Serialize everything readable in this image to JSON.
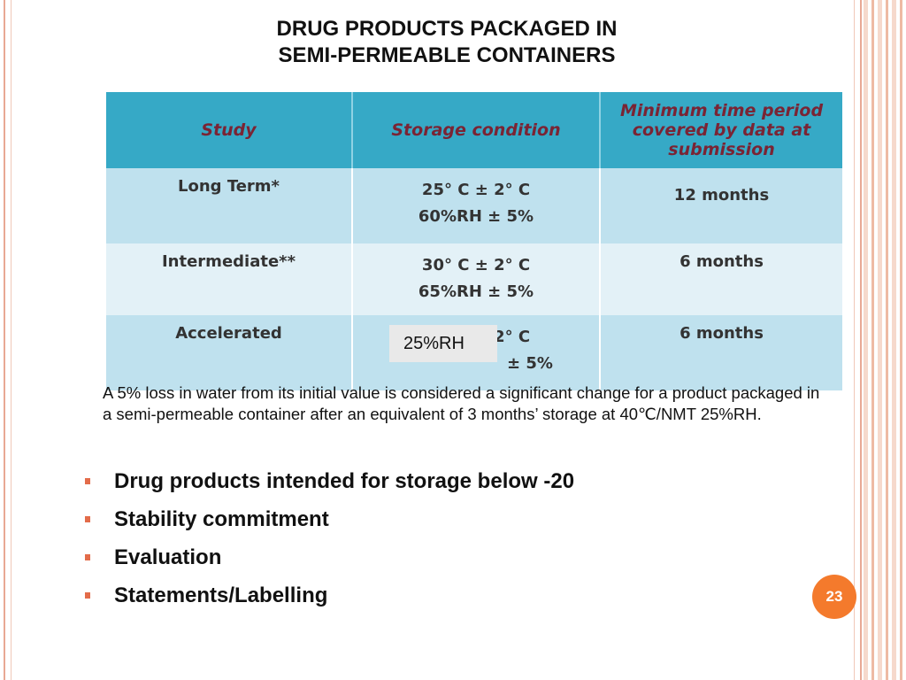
{
  "slide": {
    "title_line1": "DRUG PRODUCTS PACKAGED IN",
    "title_line2": "SEMI-PERMEABLE CONTAINERS",
    "page_number": "23",
    "accent_color": "#f47a2c"
  },
  "table": {
    "headers": [
      "Study",
      "Storage condition",
      "Minimum time period covered by data at submission"
    ],
    "rows": [
      {
        "study": "Long Term*",
        "cond1": "25° C ±  2° C",
        "cond2": "60%RH  ± 5%",
        "period": "12 months"
      },
      {
        "study": "Intermediate**",
        "cond1": "30° C ± 2° C",
        "cond2": "65%RH  ± 5%",
        "period": "6 months"
      },
      {
        "study": "Accelerated",
        "cond1": "40° C ±  2° C",
        "cond2": "± 5%",
        "period": "6 months"
      }
    ],
    "overlay_text": "25%RH",
    "header_color": "#36a9c6"
  },
  "note": "A 5% loss in water from its initial value is considered a significant change for a product packaged in a semi-permeable container after an equivalent of 3 months’ storage at 40℃/NMT 25%RH.",
  "bullets": [
    "Drug products intended for storage below -20",
    "Stability commitment",
    "Evaluation",
    "Statements/Labelling"
  ]
}
